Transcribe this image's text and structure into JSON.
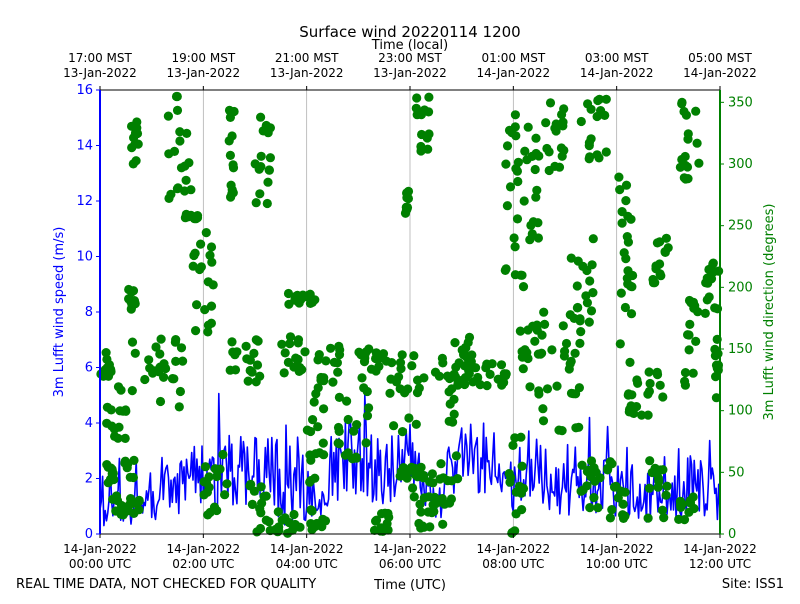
{
  "chart_data": {
    "type": "scatter",
    "title": "Surface wind 20220114 1200",
    "top_axis_label": "Time (local)",
    "top_ticks": [
      {
        "line1": "17:00 MST",
        "line2": "13-Jan-2022",
        "hour": 0
      },
      {
        "line1": "19:00 MST",
        "line2": "13-Jan-2022",
        "hour": 2
      },
      {
        "line1": "21:00 MST",
        "line2": "13-Jan-2022",
        "hour": 4
      },
      {
        "line1": "23:00 MST",
        "line2": "13-Jan-2022",
        "hour": 6
      },
      {
        "line1": "01:00 MST",
        "line2": "14-Jan-2022",
        "hour": 8
      },
      {
        "line1": "03:00 MST",
        "line2": "14-Jan-2022",
        "hour": 10
      },
      {
        "line1": "05:00 MST",
        "line2": "14-Jan-2022",
        "hour": 12
      }
    ],
    "bottom_ticks": [
      {
        "line1": "14-Jan-2022",
        "line2": "00:00 UTC",
        "hour": 0
      },
      {
        "line1": "14-Jan-2022",
        "line2": "02:00 UTC",
        "hour": 2
      },
      {
        "line1": "14-Jan-2022",
        "line2": "04:00 UTC",
        "hour": 4
      },
      {
        "line1": "14-Jan-2022",
        "line2": "06:00 UTC",
        "hour": 6
      },
      {
        "line1": "14-Jan-2022",
        "line2": "08:00 UTC",
        "hour": 8
      },
      {
        "line1": "14-Jan-2022",
        "line2": "10:00 UTC",
        "hour": 10
      },
      {
        "line1": "14-Jan-2022",
        "line2": "12:00 UTC",
        "hour": 12
      }
    ],
    "xlabel": "Time (UTC)",
    "xlim": [
      0,
      12
    ],
    "ylabel_left": "3m Lufft wind speed (m/s)",
    "ylim_left": [
      0,
      16
    ],
    "yticks_left": [
      0,
      2,
      4,
      6,
      8,
      10,
      12,
      14,
      16
    ],
    "ylabel_right": "3m Lufft wind direction (degrees)",
    "ylim_right": [
      0,
      360
    ],
    "yticks_right": [
      0,
      50,
      100,
      150,
      200,
      250,
      300,
      350
    ],
    "grid": "vertical",
    "speed_series": {
      "name": "wind speed",
      "color": "#0000ff",
      "hours": [
        0,
        0.5,
        1,
        1.5,
        2,
        2.5,
        3,
        3.5,
        4,
        4.5,
        5,
        5.5,
        6,
        6.5,
        7,
        7.5,
        8,
        8.5,
        9,
        9.5,
        10,
        10.5,
        11,
        11.5,
        12
      ],
      "values": [
        1.2,
        1.2,
        1.4,
        1.8,
        2.0,
        2.4,
        2.1,
        1.9,
        1.6,
        2.4,
        2.8,
        2.2,
        3.0,
        0.8,
        2.8,
        2.6,
        1.9,
        2.3,
        1.5,
        1.8,
        1.6,
        1.2,
        1.5,
        1.8,
        1.4
      ],
      "variability": [
        0.9,
        0.9,
        1.0,
        1.1,
        1.3,
        1.3,
        1.4,
        1.6,
        1.3,
        1.4,
        1.5,
        1.3,
        1.1,
        0.6,
        1.2,
        1.4,
        1.1,
        1.2,
        1.0,
        1.2,
        1.0,
        0.9,
        1.0,
        1.2,
        0.9
      ]
    },
    "direction_series": {
      "name": "wind direction",
      "color": "#008000",
      "clusters": [
        {
          "t": [
            0.0,
            0.3
          ],
          "d": [
            125,
            150
          ]
        },
        {
          "t": [
            0.1,
            0.5
          ],
          "d": [
            75,
            120
          ]
        },
        {
          "t": [
            0.1,
            0.7
          ],
          "d": [
            40,
            60
          ]
        },
        {
          "t": [
            0.2,
            0.8
          ],
          "d": [
            15,
            35
          ]
        },
        {
          "t": [
            0.6,
            0.75
          ],
          "d": [
            300,
            335
          ]
        },
        {
          "t": [
            0.55,
            0.7
          ],
          "d": [
            180,
            200
          ]
        },
        {
          "t": [
            0.6,
            1.6
          ],
          "d": [
            90,
            160
          ]
        },
        {
          "t": [
            1.3,
            1.8
          ],
          "d": [
            270,
            355
          ]
        },
        {
          "t": [
            1.6,
            1.9
          ],
          "d": [
            255,
            260
          ]
        },
        {
          "t": [
            1.8,
            2.2
          ],
          "d": [
            140,
            245
          ]
        },
        {
          "t": [
            2.0,
            2.5
          ],
          "d": [
            15,
            70
          ]
        },
        {
          "t": [
            2.5,
            2.6
          ],
          "d": [
            270,
            355
          ]
        },
        {
          "t": [
            2.5,
            3.1
          ],
          "d": [
            120,
            160
          ]
        },
        {
          "t": [
            2.9,
            3.3
          ],
          "d": [
            0,
            45
          ]
        },
        {
          "t": [
            3.0,
            3.3
          ],
          "d": [
            265,
            350
          ]
        },
        {
          "t": [
            3.5,
            4.0
          ],
          "d": [
            130,
            160
          ]
        },
        {
          "t": [
            3.4,
            4.4
          ],
          "d": [
            0,
            20
          ]
        },
        {
          "t": [
            3.6,
            4.2
          ],
          "d": [
            185,
            195
          ]
        },
        {
          "t": [
            4.0,
            4.4
          ],
          "d": [
            40,
            120
          ]
        },
        {
          "t": [
            4.2,
            4.7
          ],
          "d": [
            120,
            160
          ]
        },
        {
          "t": [
            4.6,
            5.2
          ],
          "d": [
            60,
            130
          ]
        },
        {
          "t": [
            5.0,
            5.6
          ],
          "d": [
            130,
            150
          ]
        },
        {
          "t": [
            5.3,
            5.7
          ],
          "d": [
            0,
            20
          ]
        },
        {
          "t": [
            5.6,
            6.3
          ],
          "d": [
            80,
            150
          ]
        },
        {
          "t": [
            5.8,
            6.3
          ],
          "d": [
            45,
            55
          ]
        },
        {
          "t": [
            5.9,
            6.0
          ],
          "d": [
            260,
            280
          ]
        },
        {
          "t": [
            6.0,
            6.4
          ],
          "d": [
            0,
            55
          ]
        },
        {
          "t": [
            6.1,
            6.4
          ],
          "d": [
            305,
            355
          ]
        },
        {
          "t": [
            6.4,
            7.1
          ],
          "d": [
            80,
            145
          ]
        },
        {
          "t": [
            6.8,
            7.2
          ],
          "d": [
            130,
            160
          ]
        },
        {
          "t": [
            6.3,
            7.0
          ],
          "d": [
            5,
            65
          ]
        },
        {
          "t": [
            7.0,
            7.9
          ],
          "d": [
            120,
            140
          ]
        },
        {
          "t": [
            7.8,
            8.2
          ],
          "d": [
            190,
            355
          ]
        },
        {
          "t": [
            7.9,
            8.2
          ],
          "d": [
            0,
            80
          ]
        },
        {
          "t": [
            8.1,
            8.6
          ],
          "d": [
            110,
            170
          ]
        },
        {
          "t": [
            8.2,
            8.5
          ],
          "d": [
            230,
            330
          ]
        },
        {
          "t": [
            8.5,
            9.3
          ],
          "d": [
            80,
            180
          ]
        },
        {
          "t": [
            8.6,
            9.0
          ],
          "d": [
            280,
            350
          ]
        },
        {
          "t": [
            9.3,
            9.8
          ],
          "d": [
            300,
            355
          ]
        },
        {
          "t": [
            9.3,
            9.7
          ],
          "d": [
            20,
            60
          ]
        },
        {
          "t": [
            9.1,
            9.7
          ],
          "d": [
            160,
            240
          ]
        },
        {
          "t": [
            9.8,
            10.2
          ],
          "d": [
            10,
            60
          ]
        },
        {
          "t": [
            9.9,
            10.4
          ],
          "d": [
            150,
            290
          ]
        },
        {
          "t": [
            10.2,
            10.9
          ],
          "d": [
            90,
            150
          ]
        },
        {
          "t": [
            10.6,
            11.0
          ],
          "d": [
            10,
            60
          ]
        },
        {
          "t": [
            10.7,
            11.0
          ],
          "d": [
            200,
            250
          ]
        },
        {
          "t": [
            11.2,
            11.5
          ],
          "d": [
            10,
            30
          ]
        },
        {
          "t": [
            11.2,
            11.6
          ],
          "d": [
            280,
            350
          ]
        },
        {
          "t": [
            11.3,
            11.6
          ],
          "d": [
            120,
            190
          ]
        },
        {
          "t": [
            11.7,
            12.0
          ],
          "d": [
            175,
            225
          ]
        },
        {
          "t": [
            11.9,
            12.0
          ],
          "d": [
            110,
            160
          ]
        }
      ]
    }
  },
  "footer": {
    "left": "REAL TIME DATA, NOT CHECKED FOR QUALITY",
    "right": "Site: ISS1"
  }
}
